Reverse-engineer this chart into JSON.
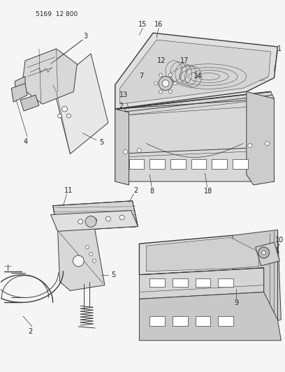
{
  "title": "5169 12 800",
  "bg": "#f5f5f5",
  "lc": "#3a3a3a",
  "tc": "#222222",
  "figsize": [
    4.08,
    5.33
  ],
  "dpi": 100,
  "title_fs": 6.5,
  "label_fs": 7.0
}
